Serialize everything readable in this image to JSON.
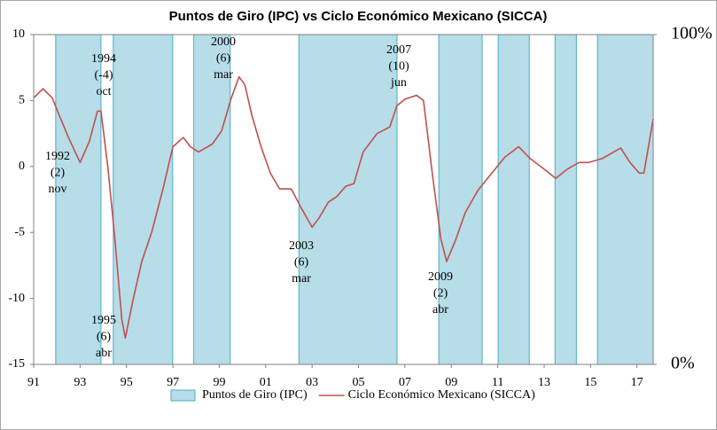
{
  "chart_data": {
    "type": "line",
    "title": "Puntos de Giro (IPC) vs Ciclo Económico Mexicano (SICCA)",
    "xlim": [
      1991,
      2017.7
    ],
    "xticks": [
      {
        "value": 1991,
        "label": "91"
      },
      {
        "value": 1993,
        "label": "93"
      },
      {
        "value": 1995,
        "label": "95"
      },
      {
        "value": 1997,
        "label": "97"
      },
      {
        "value": 1999,
        "label": "99"
      },
      {
        "value": 2001,
        "label": "01"
      },
      {
        "value": 2003,
        "label": "03"
      },
      {
        "value": 2005,
        "label": "05"
      },
      {
        "value": 2007,
        "label": "07"
      },
      {
        "value": 2009,
        "label": "09"
      },
      {
        "value": 2011,
        "label": "11"
      },
      {
        "value": 2013,
        "label": "13"
      },
      {
        "value": 2015,
        "label": "15"
      },
      {
        "value": 2017,
        "label": "17"
      }
    ],
    "ylim": [
      -15,
      10
    ],
    "yticks": [
      -15,
      -10,
      -5,
      0,
      5,
      10
    ],
    "y2lim": [
      0,
      100
    ],
    "y2ticks": [
      {
        "value": 0,
        "label": "0%"
      },
      {
        "value": 100,
        "label": "100%"
      }
    ],
    "legend": "bottom",
    "series": [
      {
        "name": "Puntos de Giro (IPC)",
        "type": "span",
        "axis": "y2",
        "color": "#b7dde8",
        "edge_color": "#4bacc6",
        "x_start": [
          1991.95,
          1994.43,
          1997.9,
          2002.43,
          2008.46,
          2011.02,
          2013.47,
          2015.3
        ],
        "x_end": [
          1993.9,
          1996.99,
          1999.47,
          2006.66,
          2010.33,
          2012.36,
          2014.39,
          2017.7
        ],
        "values": [
          100,
          100,
          100,
          100,
          100,
          100,
          100,
          100
        ]
      },
      {
        "name": "Ciclo Económico Mexicano (SICCA)",
        "type": "line",
        "color": "#c0504d",
        "x": [
          1991.0,
          1991.4,
          1991.8,
          1992.1,
          1992.5,
          1993.0,
          1993.4,
          1993.75,
          1993.9,
          1994.2,
          1994.5,
          1994.8,
          1994.95,
          1995.27,
          1995.66,
          1996.1,
          1996.6,
          1997.0,
          1997.45,
          1997.75,
          1998.1,
          1998.7,
          1999.1,
          1999.5,
          1999.85,
          2000.1,
          2000.4,
          2000.8,
          2001.2,
          2001.6,
          2002.1,
          2002.55,
          2003.0,
          2003.3,
          2003.7,
          2004.05,
          2004.45,
          2004.8,
          2005.2,
          2005.8,
          2006.35,
          2006.65,
          2007.0,
          2007.5,
          2007.8,
          2008.2,
          2008.55,
          2008.8,
          2009.2,
          2009.6,
          2010.15,
          2010.7,
          2011.3,
          2011.9,
          2012.4,
          2013.0,
          2013.5,
          2014.0,
          2014.5,
          2014.9,
          2015.5,
          2016.3,
          2016.7,
          2017.1,
          2017.3,
          2017.7
        ],
        "values": [
          5.2,
          5.9,
          5.2,
          3.9,
          2.2,
          0.3,
          1.9,
          4.2,
          4.2,
          -0.1,
          -5.5,
          -11.6,
          -13,
          -10.2,
          -7.2,
          -4.9,
          -1.5,
          1.5,
          2.2,
          1.5,
          1.1,
          1.7,
          2.7,
          5.1,
          6.8,
          6.2,
          3.9,
          1.5,
          -0.5,
          -1.7,
          -1.7,
          -3.2,
          -4.6,
          -3.9,
          -2.7,
          -2.3,
          -1.5,
          -1.3,
          1.1,
          2.5,
          3.0,
          4.6,
          5.1,
          5.4,
          5.0,
          -0.8,
          -5.5,
          -7.2,
          -5.5,
          -3.5,
          -1.8,
          -0.6,
          0.7,
          1.5,
          0.6,
          -0.2,
          -0.9,
          -0.2,
          0.3,
          0.3,
          0.6,
          1.4,
          0.3,
          -0.5,
          -0.5,
          3.6
        ]
      }
    ],
    "annotations": [
      {
        "lines": [
          "1992",
          "(2)",
          "nov"
        ]
      },
      {
        "lines": [
          "1994",
          "(-4)",
          "oct"
        ]
      },
      {
        "lines": [
          "1995",
          "(6)",
          "abr"
        ]
      },
      {
        "lines": [
          "2000",
          "(6)",
          "mar"
        ]
      },
      {
        "lines": [
          "2003",
          "(6)",
          "mar"
        ]
      },
      {
        "lines": [
          "2007",
          "(10)",
          "jun"
        ]
      },
      {
        "lines": [
          "2009",
          "(2)",
          "abr"
        ]
      }
    ]
  }
}
